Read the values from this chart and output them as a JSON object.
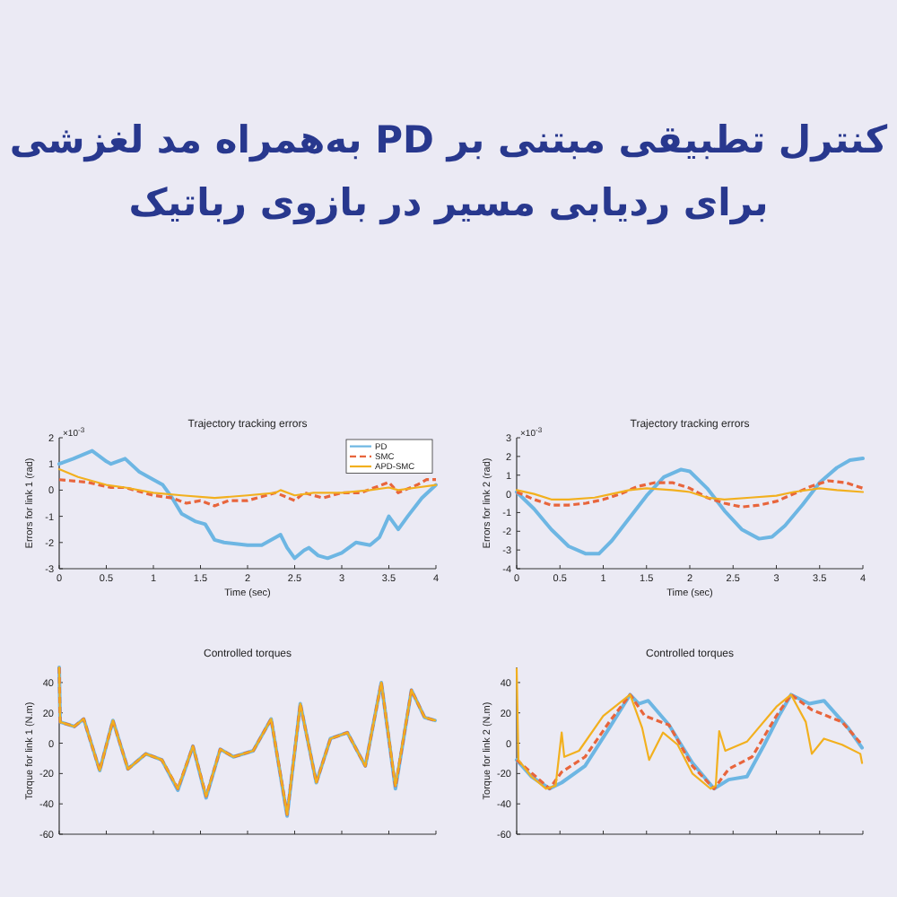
{
  "chart_data": [
    {
      "type": "other",
      "title": "کنترل تطبیقی مبتنی بر PD به‌همراه مد لغزشی",
      "subtitle": "برای ردیابی مسیر در بازوی رباتیک"
    },
    {
      "type": "line",
      "title": "Trajectory tracking errors",
      "xlabel": "Time (sec)",
      "ylabel": "Errors for link 1 (rad)",
      "annotations": [
        "×10$^{-3}$"
      ],
      "xlim": [
        0,
        4
      ],
      "ylim": [
        -3,
        2
      ],
      "xticks": [
        0,
        0.5,
        1,
        1.5,
        2,
        2.5,
        3,
        3.5,
        4
      ],
      "yticks": [
        -3,
        -2,
        -1,
        0,
        1,
        2
      ],
      "legend": "top right",
      "series": [
        {
          "name": "PD",
          "color": "#6db6e3",
          "line_style": "solid",
          "x": [
            0,
            0.15,
            0.35,
            0.5,
            0.55,
            0.7,
            0.85,
            1.0,
            1.1,
            1.2,
            1.3,
            1.45,
            1.55,
            1.65,
            1.75,
            2.0,
            2.15,
            2.3,
            2.35,
            2.42,
            2.5,
            2.6,
            2.65,
            2.75,
            2.85,
            3.0,
            3.15,
            3.3,
            3.4,
            3.5,
            3.6,
            3.7,
            3.85,
            4.0
          ],
          "values": [
            1.0,
            1.2,
            1.5,
            1.1,
            1.0,
            1.2,
            0.7,
            0.4,
            0.2,
            -0.3,
            -0.9,
            -1.2,
            -1.3,
            -1.9,
            -2.0,
            -2.1,
            -2.1,
            -1.8,
            -1.7,
            -2.2,
            -2.6,
            -2.3,
            -2.2,
            -2.5,
            -2.6,
            -2.4,
            -2.0,
            -2.1,
            -1.8,
            -1.0,
            -1.5,
            -1.0,
            -0.3,
            0.2
          ]
        },
        {
          "name": "SMC",
          "color": "#e8653c",
          "line_style": "dashed",
          "x": [
            0,
            0.3,
            0.55,
            0.7,
            1.0,
            1.2,
            1.35,
            1.5,
            1.65,
            1.8,
            2.0,
            2.3,
            2.5,
            2.6,
            2.8,
            3.0,
            3.2,
            3.35,
            3.5,
            3.6,
            3.8,
            3.9,
            4.0
          ],
          "values": [
            0.4,
            0.3,
            0.1,
            0.1,
            -0.2,
            -0.3,
            -0.5,
            -0.4,
            -0.6,
            -0.4,
            -0.4,
            -0.1,
            -0.4,
            -0.1,
            -0.3,
            -0.1,
            -0.1,
            0.1,
            0.3,
            -0.1,
            0.2,
            0.4,
            0.4
          ]
        },
        {
          "name": "APD-SMC",
          "color": "#f2b01e",
          "line_style": "solid",
          "x": [
            0,
            0.2,
            0.5,
            0.7,
            1.0,
            1.3,
            1.65,
            2.0,
            2.3,
            2.35,
            2.5,
            2.7,
            3.0,
            3.3,
            3.5,
            3.6,
            3.8,
            4.0
          ],
          "values": [
            0.8,
            0.5,
            0.2,
            0.1,
            -0.1,
            -0.2,
            -0.3,
            -0.2,
            -0.1,
            0.0,
            -0.2,
            -0.1,
            -0.1,
            0.0,
            0.1,
            0.0,
            0.1,
            0.2
          ]
        }
      ]
    },
    {
      "type": "line",
      "title": "Trajectory tracking errors",
      "xlabel": "Time (sec)",
      "ylabel": "Errors for link 2 (rad)",
      "annotations": [
        "×10$^{-3}$"
      ],
      "xlim": [
        0,
        4
      ],
      "ylim": [
        -4,
        3
      ],
      "xticks": [
        0,
        0.5,
        1,
        1.5,
        2,
        2.5,
        3,
        3.5,
        4
      ],
      "yticks": [
        -4,
        -3,
        -2,
        -1,
        0,
        1,
        2,
        3
      ],
      "series": [
        {
          "color": "#6db6e3",
          "line_style": "solid",
          "x": [
            0,
            0.2,
            0.4,
            0.6,
            0.8,
            0.95,
            1.1,
            1.3,
            1.5,
            1.7,
            1.9,
            2.0,
            2.2,
            2.4,
            2.6,
            2.8,
            2.95,
            3.1,
            3.3,
            3.5,
            3.7,
            3.85,
            4.0
          ],
          "values": [
            0.1,
            -0.8,
            -1.9,
            -2.8,
            -3.2,
            -3.2,
            -2.5,
            -1.3,
            -0.1,
            0.9,
            1.3,
            1.2,
            0.3,
            -0.9,
            -1.9,
            -2.4,
            -2.3,
            -1.7,
            -0.6,
            0.6,
            1.4,
            1.8,
            1.9
          ]
        },
        {
          "color": "#e8653c",
          "line_style": "dashed",
          "x": [
            0,
            0.2,
            0.4,
            0.6,
            0.8,
            1.0,
            1.2,
            1.4,
            1.6,
            1.8,
            2.0,
            2.2,
            2.4,
            2.6,
            2.8,
            3.0,
            3.2,
            3.4,
            3.6,
            3.8,
            4.0
          ],
          "values": [
            0.1,
            -0.3,
            -0.6,
            -0.6,
            -0.5,
            -0.3,
            0.0,
            0.4,
            0.6,
            0.6,
            0.3,
            -0.2,
            -0.5,
            -0.7,
            -0.6,
            -0.4,
            0.0,
            0.4,
            0.7,
            0.6,
            0.3
          ]
        },
        {
          "color": "#f2b01e",
          "line_style": "solid",
          "x": [
            0,
            0.2,
            0.4,
            0.6,
            0.9,
            1.1,
            1.3,
            1.5,
            1.8,
            2.0,
            2.2,
            2.4,
            2.7,
            3.0,
            3.2,
            3.5,
            3.7,
            4.0
          ],
          "values": [
            0.2,
            0.0,
            -0.3,
            -0.3,
            -0.2,
            0.0,
            0.2,
            0.3,
            0.2,
            0.1,
            -0.2,
            -0.3,
            -0.2,
            -0.1,
            0.1,
            0.3,
            0.2,
            0.1
          ]
        }
      ]
    },
    {
      "type": "line",
      "title": "Controlled torques",
      "ylabel": "Torque for link 1 (N.m)",
      "xlim": [
        0,
        4
      ],
      "ylim": [
        -60,
        50
      ],
      "xticks": [
        0,
        0.5,
        1,
        1.5,
        2,
        2.5,
        3,
        3.5,
        4
      ],
      "yticks": [
        -60,
        -40,
        -20,
        0,
        20,
        40
      ],
      "tick_labels": "y",
      "series": [
        {
          "color": "#6db6e3",
          "line_style": "solid",
          "x": [
            0,
            0.01,
            0.16,
            0.26,
            0.43,
            0.57,
            0.73,
            0.92,
            1.09,
            1.26,
            1.42,
            1.56,
            1.71,
            1.85,
            2.06,
            2.25,
            2.42,
            2.56,
            2.73,
            2.88,
            3.06,
            3.25,
            3.42,
            3.57,
            3.74,
            3.88,
            3.99
          ],
          "values": [
            50,
            14,
            11,
            16,
            -18,
            15,
            -17,
            -7,
            -11,
            -31,
            -2,
            -36,
            -4,
            -9,
            -5,
            16,
            -48,
            26,
            -26,
            3,
            7,
            -15,
            40,
            -30,
            35,
            17,
            15
          ]
        },
        {
          "color": "#e8653c",
          "line_style": "dashed",
          "x": [
            0,
            0.01,
            0.16,
            0.26,
            0.43,
            0.57,
            0.73,
            0.92,
            1.09,
            1.26,
            1.42,
            1.56,
            1.71,
            1.85,
            2.06,
            2.25,
            2.42,
            2.56,
            2.73,
            2.88,
            3.06,
            3.25,
            3.42,
            3.57,
            3.74,
            3.88,
            3.99
          ],
          "values": [
            50,
            14,
            11,
            16,
            -18,
            15,
            -17,
            -7,
            -11,
            -30,
            -2,
            -35,
            -4,
            -9,
            -5,
            16,
            -47,
            26,
            -26,
            3,
            7,
            -15,
            40,
            -29,
            35,
            17,
            15
          ]
        },
        {
          "color": "#f2b01e",
          "line_style": "solid",
          "x": [
            0,
            0.01,
            0.16,
            0.26,
            0.43,
            0.57,
            0.73,
            0.92,
            1.09,
            1.26,
            1.42,
            1.56,
            1.71,
            1.85,
            2.06,
            2.25,
            2.42,
            2.56,
            2.73,
            2.88,
            3.06,
            3.25,
            3.42,
            3.57,
            3.74,
            3.88,
            3.99
          ],
          "values": [
            50,
            14,
            11,
            16,
            -18,
            15,
            -17,
            -7,
            -11,
            -30,
            -2,
            -35,
            -4,
            -9,
            -5,
            16,
            -47,
            26,
            -26,
            3,
            7,
            -15,
            40,
            -28,
            35,
            17,
            15
          ]
        }
      ]
    },
    {
      "type": "line",
      "title": "Controlled torques",
      "ylabel": "Torque for link 2 (N.m)",
      "xlim": [
        0,
        4
      ],
      "ylim": [
        -60,
        50
      ],
      "xticks": [
        0,
        0.5,
        1,
        1.5,
        2,
        2.5,
        3,
        3.5,
        4
      ],
      "yticks": [
        -60,
        -40,
        -20,
        0,
        20,
        40
      ],
      "tick_labels": "y",
      "series": [
        {
          "color": "#6db6e3",
          "line_style": "solid",
          "x": [
            0,
            0.17,
            0.38,
            0.52,
            0.79,
            1.07,
            1.31,
            1.41,
            1.52,
            1.76,
            2.03,
            2.28,
            2.45,
            2.66,
            2.86,
            3.03,
            3.17,
            3.38,
            3.55,
            3.83,
            3.99
          ],
          "values": [
            -11,
            -22,
            -30,
            -26,
            -15,
            10,
            32,
            26,
            28,
            12,
            -13,
            -30,
            -24,
            -22,
            -1,
            18,
            32,
            26,
            28,
            10,
            -3
          ]
        },
        {
          "color": "#e8653c",
          "line_style": "dashed",
          "x": [
            0,
            0.38,
            0.52,
            0.79,
            1.07,
            1.31,
            1.48,
            1.76,
            2.03,
            2.28,
            2.45,
            2.72,
            3.0,
            3.17,
            3.41,
            3.76,
            3.99
          ],
          "values": [
            -11,
            -30,
            -19,
            -9,
            14,
            32,
            18,
            12,
            -15,
            -30,
            -17,
            -9,
            18,
            32,
            22,
            14,
            -1
          ]
        },
        {
          "color": "#f2b01e",
          "line_style": "solid",
          "x": [
            0,
            0.02,
            0.17,
            0.34,
            0.45,
            0.52,
            0.55,
            0.72,
            1.0,
            1.31,
            1.45,
            1.53,
            1.69,
            1.86,
            2.03,
            2.24,
            2.3,
            2.34,
            2.41,
            2.66,
            3.0,
            3.17,
            3.34,
            3.41,
            3.55,
            3.76,
            3.97,
            3.99
          ],
          "values": [
            49,
            -11,
            -22,
            -30,
            -28,
            7,
            -9,
            -5,
            18,
            32,
            10,
            -11,
            7,
            -1,
            -20,
            -30,
            -28,
            8,
            -5,
            1,
            24,
            32,
            14,
            -7,
            3,
            -1,
            -7,
            -13
          ]
        }
      ]
    }
  ]
}
